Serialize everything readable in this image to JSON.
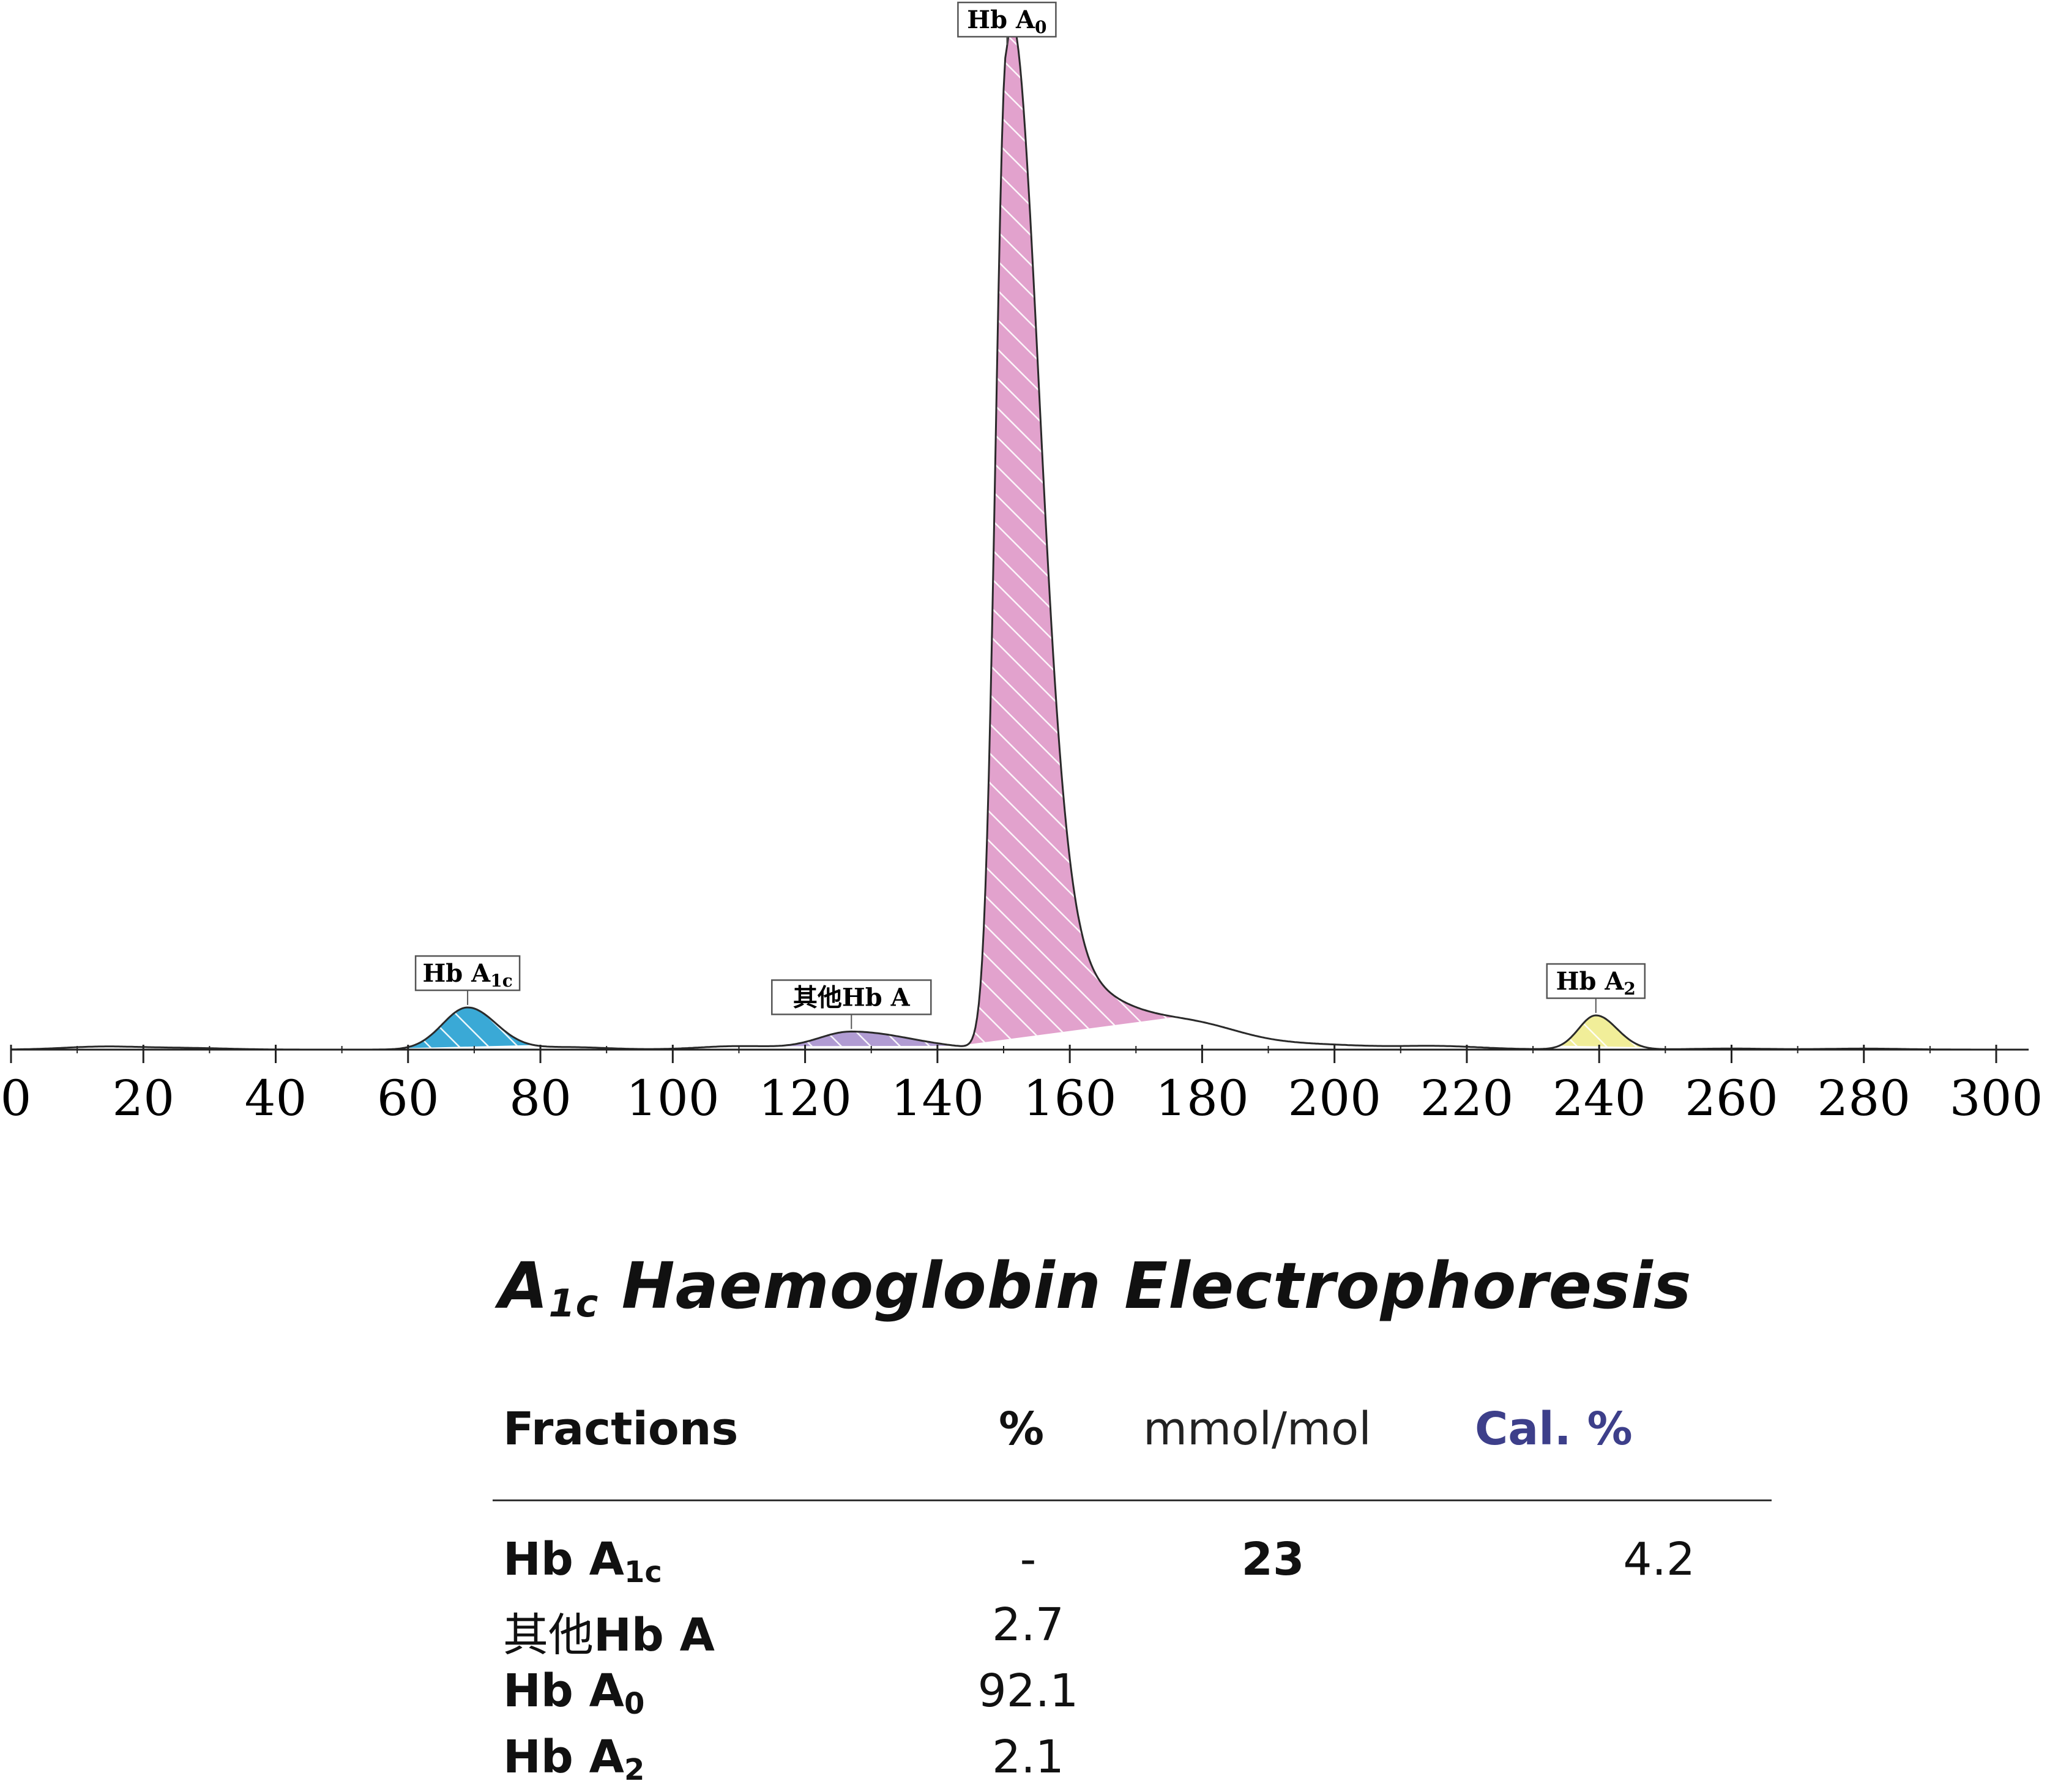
{
  "chart_data": {
    "type": "area",
    "xlim": [
      0,
      300
    ],
    "x_ticks": [
      0,
      20,
      40,
      60,
      80,
      100,
      120,
      140,
      160,
      180,
      200,
      220,
      240,
      260,
      280,
      300
    ],
    "tick_labels": [
      "0",
      "20",
      "40",
      "60",
      "80",
      "100",
      "120",
      "140",
      "160",
      "180",
      "200",
      "220",
      "240",
      "260",
      "280",
      "300"
    ],
    "trace_baseline": [
      [
        14,
        0.3
      ],
      [
        27,
        0.15
      ],
      [
        84,
        0.25
      ],
      [
        110,
        0.35
      ],
      [
        180,
        0.9
      ],
      [
        200,
        0.1
      ],
      [
        216,
        0.25
      ],
      [
        260,
        0.1
      ],
      [
        280,
        0.1
      ]
    ],
    "peaks": [
      {
        "label": "Hb A",
        "sub": "1c",
        "label_prefix": "",
        "center": 69,
        "height": 4.2,
        "width_left": 3.8,
        "width_right": 4.3,
        "range": [
          59,
          79
        ],
        "color": "#3aa9d6"
      },
      {
        "label": "Hb A",
        "sub": "",
        "label_prefix": "其他",
        "center": 127,
        "height": 1.8,
        "width_left": 5,
        "width_right": 9,
        "range": [
          108,
          143
        ],
        "color": "#b19cd3"
      },
      {
        "label": "Hb A",
        "sub": "0",
        "label_prefix": "",
        "center": 150.5,
        "height": 100,
        "width_left": 1.7,
        "width_right": 4.5,
        "tail_amp": 18,
        "tail_width": 13,
        "range": [
          143,
          176
        ],
        "color": "#e2a2cd"
      },
      {
        "label": "Hb A",
        "sub": "2",
        "label_prefix": "",
        "center": 239.5,
        "height": 3.4,
        "width_left": 2.6,
        "width_right": 3.2,
        "range": [
          234,
          247
        ],
        "color": "#f1ee99"
      }
    ]
  },
  "report": {
    "title_main": "A",
    "title_sub": "1c",
    "title_rest": " Haemoglobin Electrophoresis",
    "headers": {
      "fractions": "Fractions",
      "percent": "%",
      "mmol": "mmol/mol",
      "cal": "Cal. %"
    },
    "cal_color": "#3d3f8a",
    "rows": [
      {
        "prefix": "",
        "name": "Hb A",
        "sub": "1c",
        "percent": "-",
        "mmol": "23",
        "cal": "4.2"
      },
      {
        "prefix": "其他",
        "name": "Hb A",
        "sub": "",
        "percent": "2.7",
        "mmol": "",
        "cal": ""
      },
      {
        "prefix": "",
        "name": "Hb A",
        "sub": "0",
        "percent": "92.1",
        "mmol": "",
        "cal": ""
      },
      {
        "prefix": "",
        "name": "Hb A",
        "sub": "2",
        "percent": "2.1",
        "mmol": "",
        "cal": ""
      }
    ]
  }
}
